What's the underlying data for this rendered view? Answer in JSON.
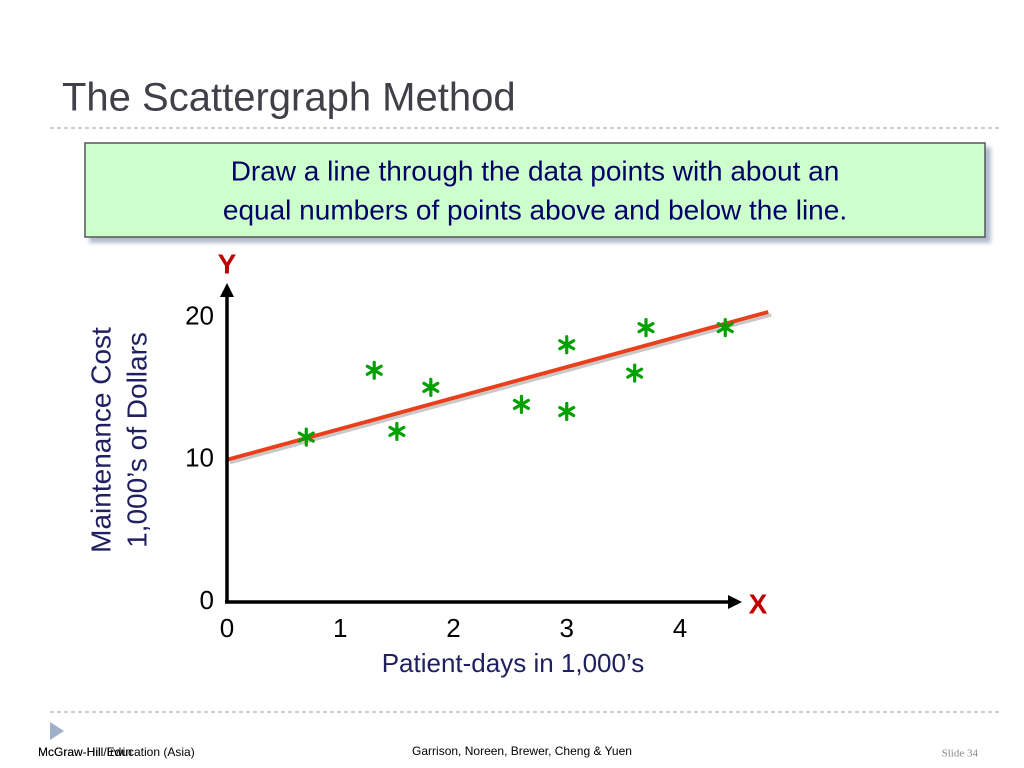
{
  "title": "The Scattergraph Method",
  "callout": [
    "Draw a line through the data points with about an",
    "equal numbers of points above and below the line."
  ],
  "footer": {
    "left": [
      "McGraw-Hill/Irwin",
      "McGraw-Hill Education (Asia)"
    ],
    "center": "Garrison, Noreen, Brewer, Cheng & Yuen",
    "right": "Slide 34"
  },
  "chart_data": {
    "type": "scatter",
    "y_axis_name": "Y",
    "x_axis_name": "X",
    "ylabel": [
      "Maintenance Cost",
      "1,000’s of Dollars"
    ],
    "xlabel": "Patient-days in 1,000’s",
    "x": [
      0.7,
      1.3,
      1.5,
      1.8,
      2.6,
      3.0,
      3.0,
      3.6,
      3.7,
      4.4
    ],
    "y": [
      11.6,
      16.3,
      12.0,
      15.1,
      13.9,
      18.1,
      13.4,
      16.1,
      19.3,
      19.3
    ],
    "color": "#00a000",
    "trend_line": {
      "x": [
        0,
        4.78
      ],
      "y": [
        10,
        20.4
      ],
      "color": "#e8401c"
    },
    "xlim": [
      0,
      4.53
    ],
    "ylim": [
      0,
      22.3
    ],
    "xticks": [
      0,
      1,
      2,
      3,
      4
    ],
    "yticks": [
      0,
      10,
      20
    ],
    "grid": false
  }
}
